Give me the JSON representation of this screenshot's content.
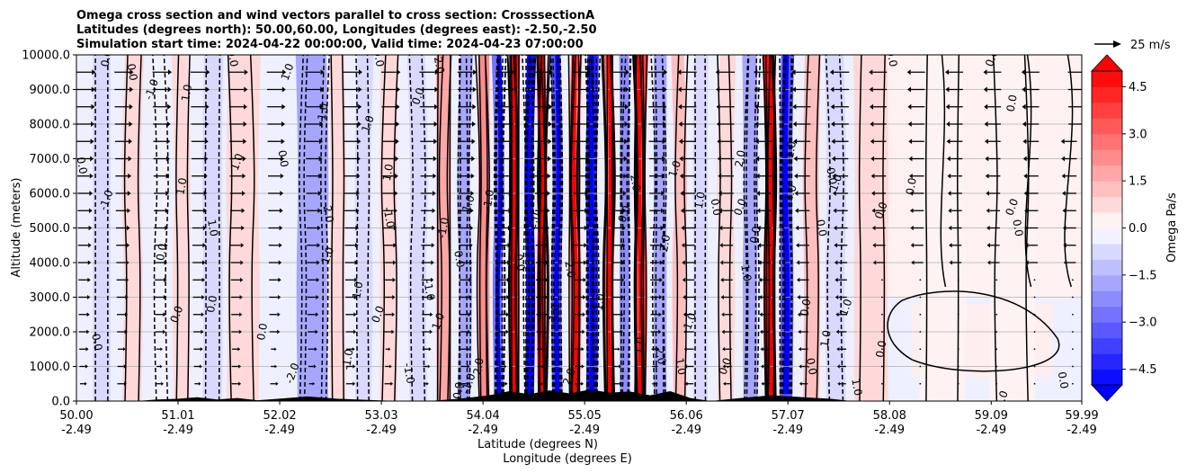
{
  "chart_data": {
    "type": "heatmap",
    "title_lines": [
      "Omega cross section and wind vectors parallel to cross section: CrosssectionA",
      "Latitudes (degrees north): 50.00,60.00, Longitudes (degrees east): -2.50,-2.50",
      "Simulation start time: 2024-04-22 00:00:00, Valid time: 2024-04-23 07:00:00"
    ],
    "xlabel_lines": [
      "Latitude (degrees N)",
      "Longitude (degrees E)"
    ],
    "ylabel": "Altitude (meters)",
    "xlim": [
      50.0,
      59.99
    ],
    "ylim": [
      0,
      10000
    ],
    "x_ticks": [
      {
        "lat": "50.00",
        "lon": "-2.49",
        "value": 50.0
      },
      {
        "lat": "51.01",
        "lon": "-2.49",
        "value": 51.01
      },
      {
        "lat": "52.02",
        "lon": "-2.49",
        "value": 52.02
      },
      {
        "lat": "53.03",
        "lon": "-2.49",
        "value": 53.03
      },
      {
        "lat": "54.04",
        "lon": "-2.49",
        "value": 54.04
      },
      {
        "lat": "55.05",
        "lon": "-2.49",
        "value": 55.05
      },
      {
        "lat": "56.06",
        "lon": "-2.49",
        "value": 56.06
      },
      {
        "lat": "57.07",
        "lon": "-2.49",
        "value": 57.07
      },
      {
        "lat": "58.08",
        "lon": "-2.49",
        "value": 58.08
      },
      {
        "lat": "59.09",
        "lon": "-2.49",
        "value": 59.09
      },
      {
        "lat": "59.99",
        "lon": "-2.49",
        "value": 59.99
      }
    ],
    "y_ticks": [
      {
        "label": "0.0",
        "value": 0
      },
      {
        "label": "1000.0",
        "value": 1000
      },
      {
        "label": "2000.0",
        "value": 2000
      },
      {
        "label": "3000.0",
        "value": 3000
      },
      {
        "label": "4000.0",
        "value": 4000
      },
      {
        "label": "5000.0",
        "value": 5000
      },
      {
        "label": "6000.0",
        "value": 6000
      },
      {
        "label": "7000.0",
        "value": 7000
      },
      {
        "label": "8000.0",
        "value": 8000
      },
      {
        "label": "9000.0",
        "value": 9000
      },
      {
        "label": "10000.0",
        "value": 10000
      }
    ],
    "colorbar": {
      "label": "Omega Pa/s",
      "range": [
        -5,
        5
      ],
      "levels": 20,
      "extend": "both",
      "ticks": [
        {
          "label": "4.5",
          "value": 4.5
        },
        {
          "label": "3.0",
          "value": 3.0
        },
        {
          "label": "1.5",
          "value": 1.5
        },
        {
          "label": "0.0",
          "value": 0.0
        },
        {
          "label": "−1.5",
          "value": -1.5
        },
        {
          "label": "−3.0",
          "value": -3.0
        },
        {
          "label": "−4.5",
          "value": -4.5
        }
      ]
    },
    "quiver_key": {
      "label": "25 m/s",
      "speed": 25
    },
    "omega_bands": [
      {
        "lat": 50.25,
        "v": -0.6
      },
      {
        "lat": 50.55,
        "v": 0.5
      },
      {
        "lat": 50.85,
        "v": -0.4
      },
      {
        "lat": 51.05,
        "v": 0.7
      },
      {
        "lat": 51.35,
        "v": -0.5
      },
      {
        "lat": 51.65,
        "v": 0.6
      },
      {
        "lat": 52.35,
        "v": -1.6
      },
      {
        "lat": 52.6,
        "v": 0.8
      },
      {
        "lat": 52.85,
        "v": -0.6
      },
      {
        "lat": 53.1,
        "v": 0.9
      },
      {
        "lat": 53.4,
        "v": -0.8
      },
      {
        "lat": 53.65,
        "v": 1.7
      },
      {
        "lat": 53.85,
        "v": -1.5
      },
      {
        "lat": 54.05,
        "v": 2.2
      },
      {
        "lat": 54.2,
        "v": -2.6
      },
      {
        "lat": 54.35,
        "v": 4.8
      },
      {
        "lat": 54.5,
        "v": -4.6
      },
      {
        "lat": 54.63,
        "v": 4.5
      },
      {
        "lat": 54.78,
        "v": -3.2
      },
      {
        "lat": 54.95,
        "v": 2.8
      },
      {
        "lat": 55.12,
        "v": -4.2
      },
      {
        "lat": 55.3,
        "v": 3.0
      },
      {
        "lat": 55.45,
        "v": -2.0
      },
      {
        "lat": 55.6,
        "v": 3.5
      },
      {
        "lat": 55.8,
        "v": -1.6
      },
      {
        "lat": 56.0,
        "v": 1.3
      },
      {
        "lat": 56.2,
        "v": -0.9
      },
      {
        "lat": 56.45,
        "v": 0.7
      },
      {
        "lat": 56.7,
        "v": -1.5
      },
      {
        "lat": 56.9,
        "v": 4.7
      },
      {
        "lat": 57.05,
        "v": -3.0
      },
      {
        "lat": 57.3,
        "v": 1.4
      },
      {
        "lat": 57.55,
        "v": -0.6
      },
      {
        "lat": 57.9,
        "v": 0.5
      },
      {
        "lat": 58.6,
        "v": 0.3
      },
      {
        "lat": 59.3,
        "v": 0.3
      }
    ],
    "contour_labels": [
      {
        "text": "0.0",
        "x": 50.3,
        "y": 9900
      },
      {
        "text": "0.0",
        "x": 50.55,
        "y": 9500
      },
      {
        "text": "-1.0",
        "x": 50.75,
        "y": 9000
      },
      {
        "text": "1.0",
        "x": 51.1,
        "y": 8900
      },
      {
        "text": "0.0",
        "x": 50.05,
        "y": 6800
      },
      {
        "text": "-1.0",
        "x": 50.3,
        "y": 5800
      },
      {
        "text": "0.0",
        "x": 50.85,
        "y": 4300
      },
      {
        "text": "0.0",
        "x": 50.2,
        "y": 1700
      },
      {
        "text": "0.0",
        "x": 51.0,
        "y": 2500
      },
      {
        "text": "0.0",
        "x": 51.35,
        "y": 2800
      },
      {
        "text": "0.0",
        "x": 51.55,
        "y": 9900
      },
      {
        "text": "1.0",
        "x": 51.6,
        "y": 6900
      },
      {
        "text": "1.0",
        "x": 51.05,
        "y": 6200
      },
      {
        "text": "0.0",
        "x": 52.05,
        "y": 7000
      },
      {
        "text": "1.0",
        "x": 52.1,
        "y": 9500
      },
      {
        "text": "-1.0",
        "x": 52.45,
        "y": 8300
      },
      {
        "text": "2.0",
        "x": 52.5,
        "y": 5400
      },
      {
        "text": "1.0",
        "x": 52.5,
        "y": 4200
      },
      {
        "text": "0.0",
        "x": 51.85,
        "y": 2000
      },
      {
        "text": "1.0",
        "x": 51.35,
        "y": 5000
      },
      {
        "text": "-2.0",
        "x": 52.15,
        "y": 800
      },
      {
        "text": "-1.0",
        "x": 52.7,
        "y": 1200
      },
      {
        "text": "0.0",
        "x": 53.0,
        "y": 9900
      },
      {
        "text": "1.0",
        "x": 52.9,
        "y": 8000
      },
      {
        "text": "1.0",
        "x": 53.1,
        "y": 6600
      },
      {
        "text": "-1.0",
        "x": 53.1,
        "y": 5300
      },
      {
        "text": "0.0",
        "x": 53.0,
        "y": 2500
      },
      {
        "text": "1.0",
        "x": 52.8,
        "y": 3200
      },
      {
        "text": "2.0",
        "x": 53.6,
        "y": 9700
      },
      {
        "text": "0.0",
        "x": 53.4,
        "y": 8800
      },
      {
        "text": "-1.0",
        "x": 53.65,
        "y": 5000
      },
      {
        "text": "-1.0",
        "x": 53.5,
        "y": 3200
      },
      {
        "text": "1.0",
        "x": 53.9,
        "y": 5700
      },
      {
        "text": "-1.0",
        "x": 54.1,
        "y": 5800
      },
      {
        "text": "0.0",
        "x": 53.8,
        "y": 4100
      },
      {
        "text": "1.0",
        "x": 53.6,
        "y": 2300
      },
      {
        "text": "0.0",
        "x": 53.8,
        "y": 300
      },
      {
        "text": "-1.0",
        "x": 53.3,
        "y": 800
      },
      {
        "text": "-1.0",
        "x": 53.9,
        "y": 500
      },
      {
        "text": "2.0",
        "x": 54.0,
        "y": 1000
      },
      {
        "text": "0.0",
        "x": 54.4,
        "y": 4000
      },
      {
        "text": "2.0",
        "x": 54.55,
        "y": 5200
      },
      {
        "text": "-1.0",
        "x": 54.75,
        "y": 2500
      },
      {
        "text": "2.0",
        "x": 54.9,
        "y": 3800
      },
      {
        "text": "2.0",
        "x": 54.9,
        "y": 700
      },
      {
        "text": "-1.0",
        "x": 55.2,
        "y": 2800
      },
      {
        "text": "2.0",
        "x": 55.55,
        "y": 6300
      },
      {
        "text": "0.0",
        "x": 55.45,
        "y": 5400
      },
      {
        "text": "1.0",
        "x": 55.6,
        "y": 1600
      },
      {
        "text": "2.0",
        "x": 55.8,
        "y": 1300
      },
      {
        "text": "1.0",
        "x": 55.95,
        "y": 6700
      },
      {
        "text": "-2.0",
        "x": 55.85,
        "y": 4500
      },
      {
        "text": "1.0",
        "x": 56.0,
        "y": 1000
      },
      {
        "text": "1.0",
        "x": 56.1,
        "y": 2300
      },
      {
        "text": "1.0",
        "x": 56.2,
        "y": 5800
      },
      {
        "text": "0.0",
        "x": 56.35,
        "y": 5600
      },
      {
        "text": "0.0",
        "x": 56.6,
        "y": 5600
      },
      {
        "text": "2.0",
        "x": 56.6,
        "y": 7000
      },
      {
        "text": "1.0",
        "x": 56.65,
        "y": 3700
      },
      {
        "text": "0.0",
        "x": 56.45,
        "y": 1000
      },
      {
        "text": "0.0",
        "x": 56.75,
        "y": 4800
      },
      {
        "text": "0.0",
        "x": 57.4,
        "y": 5000
      },
      {
        "text": "1.0",
        "x": 57.1,
        "y": 6000
      },
      {
        "text": "-1.0",
        "x": 57.1,
        "y": 7200
      },
      {
        "text": "0.0",
        "x": 57.5,
        "y": 6500
      },
      {
        "text": "1.0",
        "x": 57.55,
        "y": 6300
      },
      {
        "text": "1.0",
        "x": 57.45,
        "y": 1800
      },
      {
        "text": "0.0",
        "x": 57.3,
        "y": 1000
      },
      {
        "text": "1.0",
        "x": 57.65,
        "y": 2700
      },
      {
        "text": "0.0",
        "x": 57.25,
        "y": 2700
      },
      {
        "text": "1.0",
        "x": 57.75,
        "y": 400
      },
      {
        "text": "0.0",
        "x": 58.0,
        "y": 5500
      },
      {
        "text": "0.0",
        "x": 58.3,
        "y": 6200
      },
      {
        "text": "0.0",
        "x": 58.1,
        "y": 9900
      },
      {
        "text": "0.0",
        "x": 59.1,
        "y": 9900
      },
      {
        "text": "0.0",
        "x": 59.3,
        "y": 8600
      },
      {
        "text": "0.0",
        "x": 59.35,
        "y": 5000
      },
      {
        "text": "0.0",
        "x": 59.3,
        "y": 5600
      },
      {
        "text": "0.0",
        "x": 58.0,
        "y": 1500
      },
      {
        "text": "0.0",
        "x": 59.8,
        "y": 600
      },
      {
        "text": "0.0",
        "x": 59.2,
        "y": 50
      }
    ]
  }
}
